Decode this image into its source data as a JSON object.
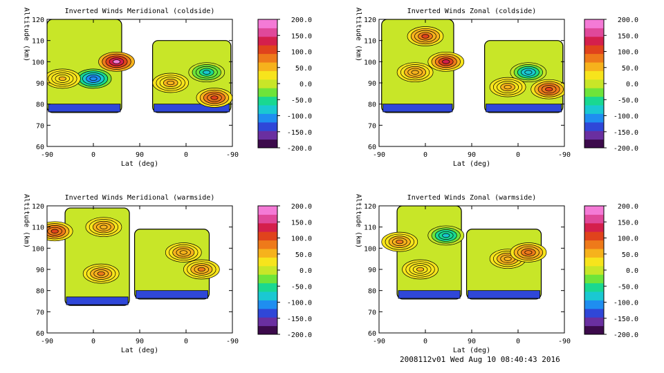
{
  "footer": "2008112v01 Wed Aug 10 08:40:43 2016",
  "colorbar": {
    "ticks": [
      "200.0",
      "150.0",
      "100.0",
      "50.0",
      "0.0",
      "-50.0",
      "-100.0",
      "-150.0",
      "-200.0"
    ],
    "colors": [
      "#3c0a4b",
      "#6a2fa0",
      "#2f47d8",
      "#1f8ef0",
      "#1ac8d2",
      "#19d891",
      "#6ee43a",
      "#c8e628",
      "#f7e41c",
      "#f6b21c",
      "#ee7a1a",
      "#e0431c",
      "#d41f4c",
      "#e0489a",
      "#f47ad6"
    ]
  },
  "chart_data": [
    {
      "type": "contour",
      "title": "Inverted Winds Meridional (coldside)",
      "xlabel": "Lat (deg)",
      "ylabel": "Altitude (km)",
      "xticks": [
        "-90",
        "0",
        "90",
        "0",
        "-90"
      ],
      "yticks": [
        "60",
        "70",
        "80",
        "90",
        "100",
        "110",
        "120"
      ],
      "ylim": [
        60,
        120
      ],
      "zlim": [
        -200,
        200
      ],
      "features": [
        {
          "x": 0,
          "y": 92,
          "value": -120
        },
        {
          "x": -60,
          "y": 92,
          "value": 40
        },
        {
          "x": 45,
          "y": 100,
          "value": 180
        },
        {
          "x": 150,
          "y": 90,
          "value": 50
        },
        {
          "x": 235,
          "y": 83,
          "value": 110
        },
        {
          "x": 220,
          "y": 95,
          "value": -70
        }
      ]
    },
    {
      "type": "contour",
      "title": "Inverted Winds Zonal (coldside)",
      "xlabel": "Lat (deg)",
      "ylabel": "Altitude (km)",
      "xticks": [
        "-90",
        "0",
        "90",
        "0",
        "-90"
      ],
      "yticks": [
        "60",
        "70",
        "80",
        "90",
        "100",
        "110",
        "120"
      ],
      "ylim": [
        60,
        120
      ],
      "zlim": [
        -200,
        200
      ],
      "features": [
        {
          "x": -20,
          "y": 95,
          "value": 60
        },
        {
          "x": 0,
          "y": 112,
          "value": 100
        },
        {
          "x": 40,
          "y": 100,
          "value": 130
        },
        {
          "x": 200,
          "y": 95,
          "value": -90
        },
        {
          "x": 160,
          "y": 88,
          "value": 50
        },
        {
          "x": 240,
          "y": 87,
          "value": 110
        }
      ]
    },
    {
      "type": "contour",
      "title": "Inverted Winds Meridional (warmside)",
      "xlabel": "Lat (deg)",
      "ylabel": "Altitude (km)",
      "xticks": [
        "-90",
        "0",
        "90",
        "0",
        "-90"
      ],
      "yticks": [
        "60",
        "70",
        "80",
        "90",
        "100",
        "110",
        "120"
      ],
      "ylim": [
        60,
        120
      ],
      "zlim": [
        -200,
        200
      ],
      "features": [
        {
          "x": -75,
          "y": 108,
          "value": 110
        },
        {
          "x": 20,
          "y": 110,
          "value": 60
        },
        {
          "x": 15,
          "y": 88,
          "value": 70
        },
        {
          "x": 175,
          "y": 98,
          "value": 60
        },
        {
          "x": 210,
          "y": 90,
          "value": 70
        }
      ]
    },
    {
      "type": "contour",
      "title": "Inverted Winds Zonal (warmside)",
      "xlabel": "Lat (deg)",
      "ylabel": "Altitude (km)",
      "xticks": [
        "-90",
        "0",
        "90",
        "0",
        "-90"
      ],
      "yticks": [
        "60",
        "70",
        "80",
        "90",
        "100",
        "110",
        "120"
      ],
      "ylim": [
        60,
        120
      ],
      "zlim": [
        -200,
        200
      ],
      "features": [
        {
          "x": -50,
          "y": 103,
          "value": 80
        },
        {
          "x": 40,
          "y": 106,
          "value": -80
        },
        {
          "x": -10,
          "y": 90,
          "value": 40
        },
        {
          "x": 160,
          "y": 95,
          "value": 60
        },
        {
          "x": 200,
          "y": 98,
          "value": 90
        }
      ]
    }
  ]
}
